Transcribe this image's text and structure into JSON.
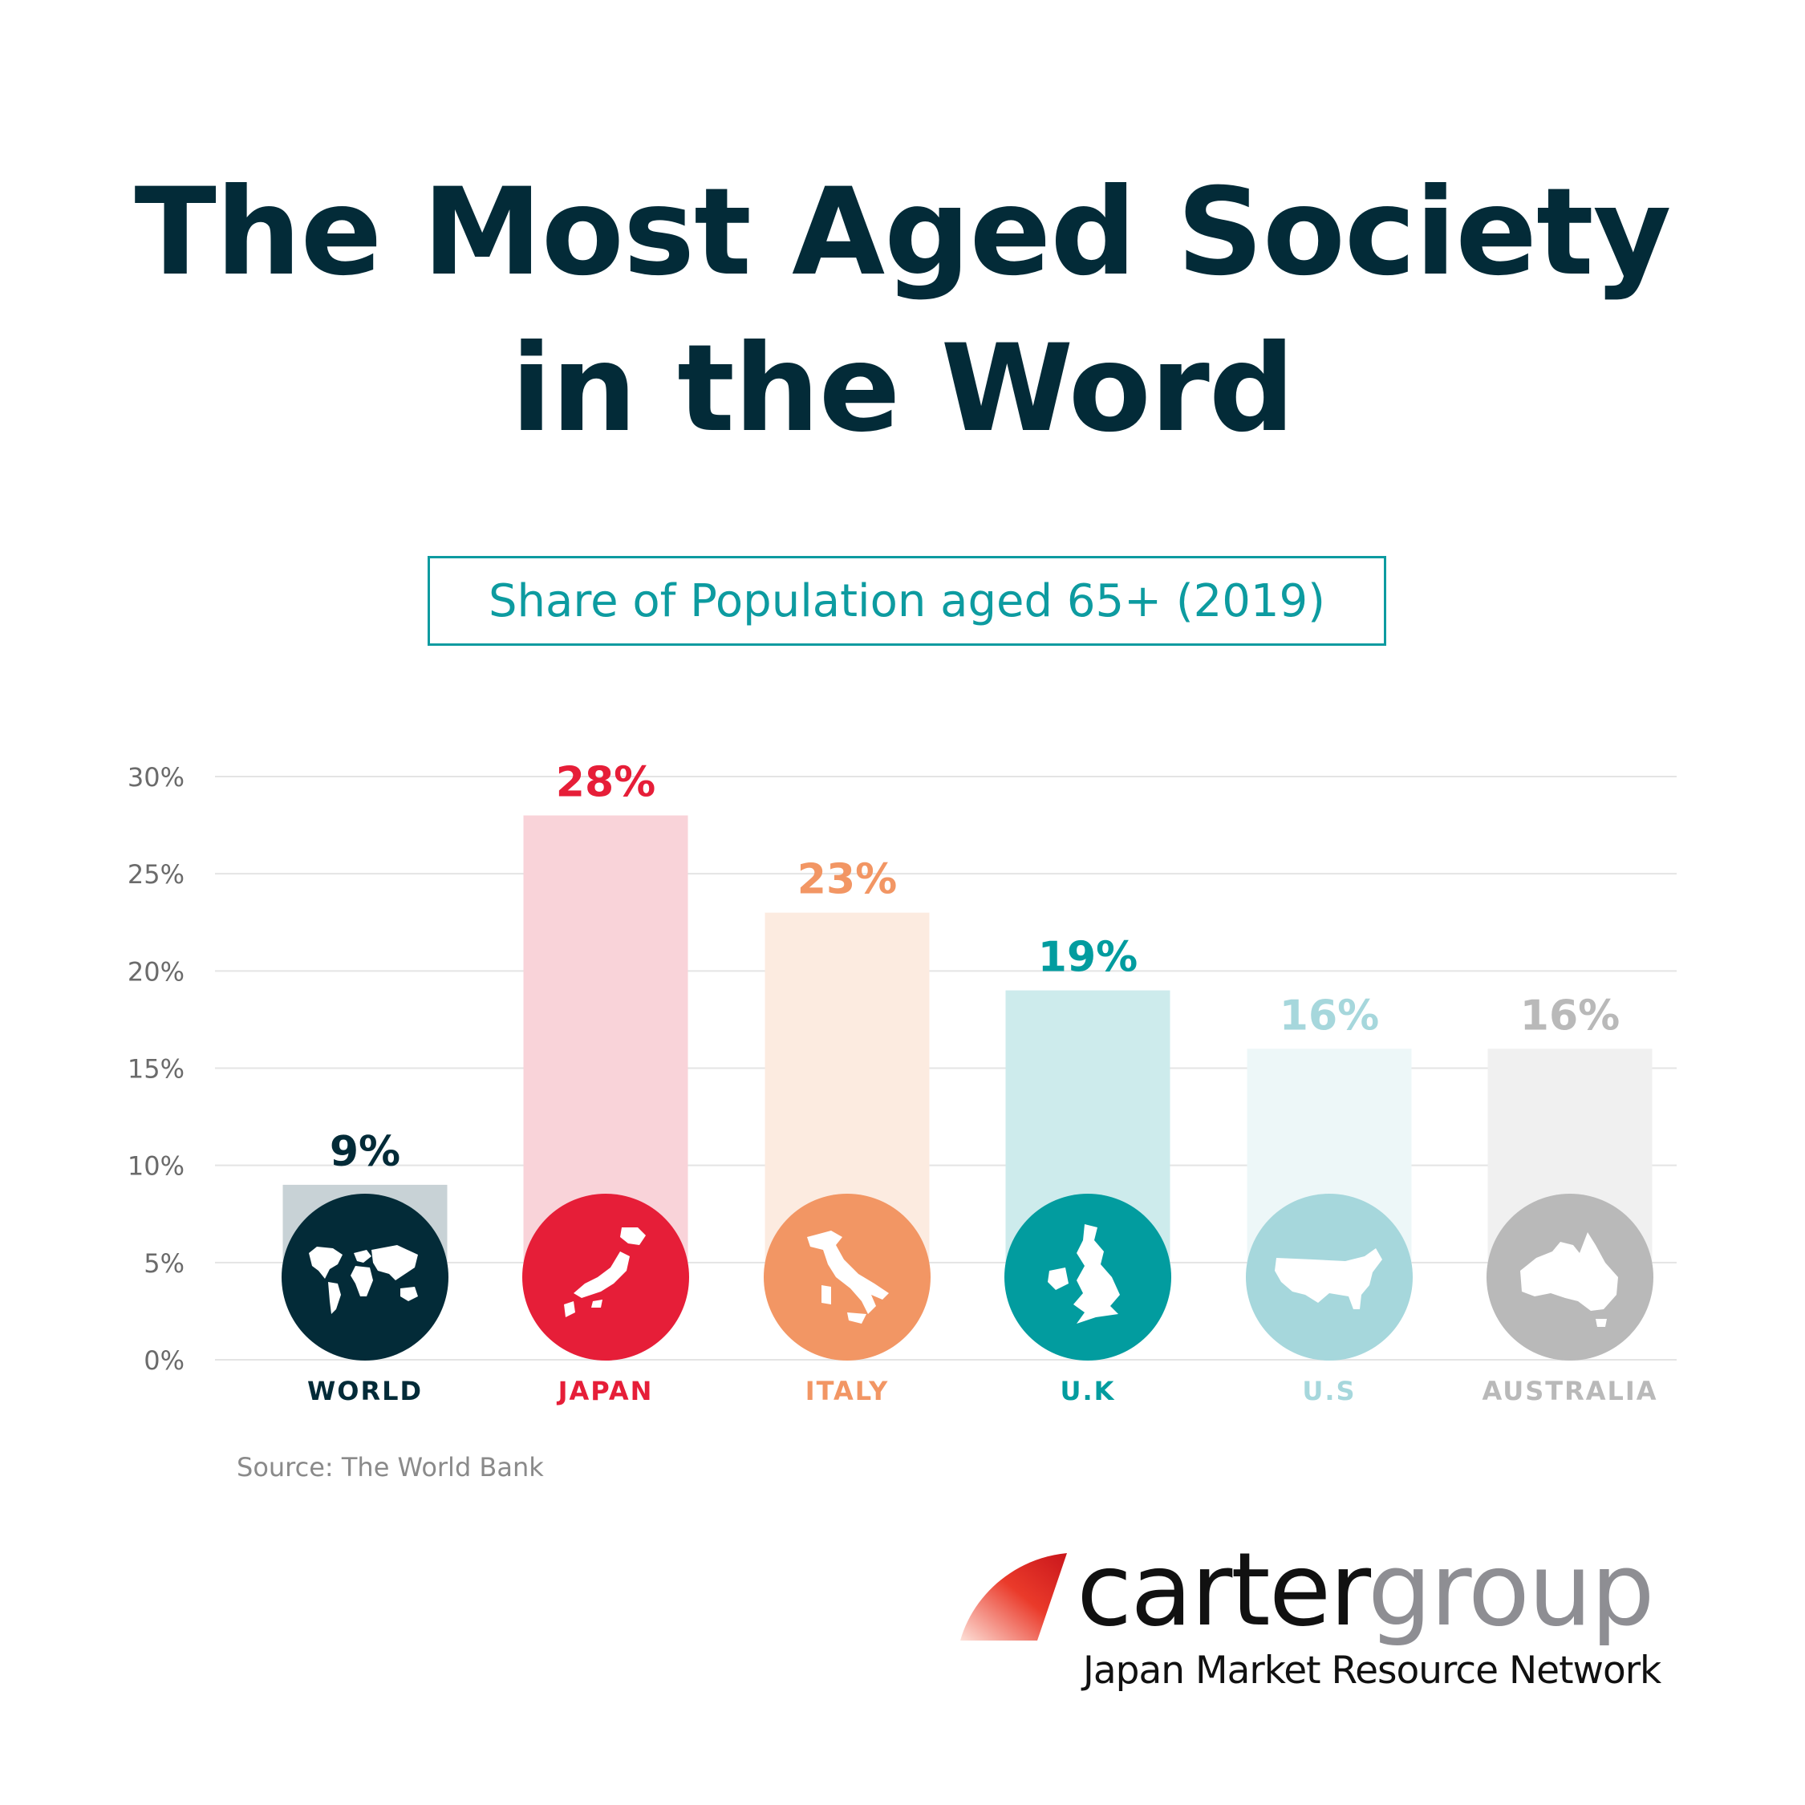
{
  "page": {
    "title_line1": "The Most Aged Society",
    "title_line2": "in the Word",
    "subtitle": "Share of Population aged 65+ (2019)",
    "source": "Source: The World Bank"
  },
  "logo": {
    "brand_part1": "carter",
    "brand_part2": "group",
    "tagline": "Japan Market Resource Network"
  },
  "chart_data": {
    "type": "bar",
    "categories": [
      "WORLD",
      "JAPAN",
      "ITALY",
      "U.K",
      "U.S",
      "AUSTRALIA"
    ],
    "values": [
      9,
      28,
      23,
      19,
      16,
      16
    ],
    "value_labels": [
      "9%",
      "28%",
      "23%",
      "19%",
      "16%",
      "16%"
    ],
    "ylim": [
      0,
      30
    ],
    "yticks": [
      0,
      5,
      10,
      15,
      20,
      25,
      30
    ],
    "ytick_labels": [
      "0%",
      "5%",
      "10%",
      "15%",
      "20%",
      "25%",
      "30%"
    ],
    "grid": true,
    "icons": [
      "world-map-icon",
      "japan-map-icon",
      "italy-map-icon",
      "uk-map-icon",
      "us-map-icon",
      "australia-map-icon"
    ],
    "colors": {
      "main": [
        "#032b38",
        "#e61e38",
        "#f29664",
        "#029c9f",
        "#a6d7dc",
        "#b9b9b9"
      ],
      "bar_fill": [
        "#c8d2d6",
        "#f9d3d9",
        "#fcebe0",
        "#cdebec",
        "#edf7f8",
        "#f0f0f0"
      ],
      "category_label": [
        "#032b38",
        "#e61e38",
        "#f29664",
        "#029c9f",
        "#a6d7dc",
        "#b9b9b9"
      ]
    }
  }
}
